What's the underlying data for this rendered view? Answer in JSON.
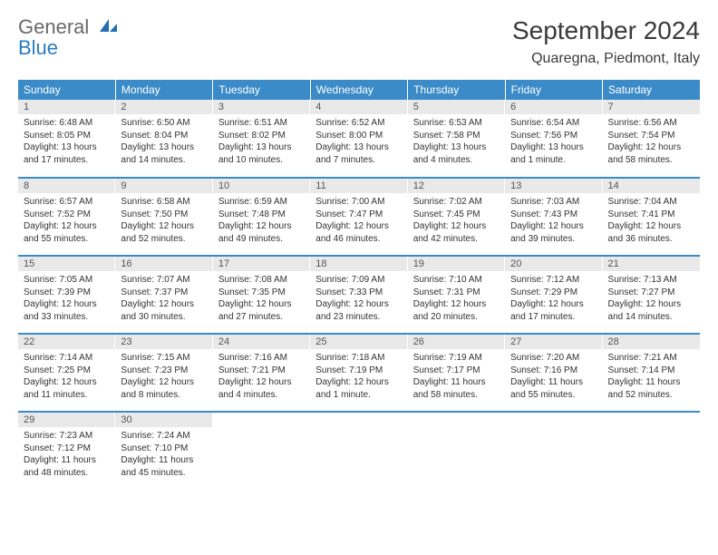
{
  "logo": {
    "line1": "General",
    "line2": "Blue"
  },
  "title": "September 2024",
  "location": "Quaregna, Piedmont, Italy",
  "colors": {
    "header_bg": "#3b8bc8",
    "header_text": "#ffffff",
    "daynum_bg": "#e9e9e9",
    "daynum_text": "#555555",
    "cell_border": "#3b8bc8",
    "title_color": "#3a3a3a",
    "body_text": "#333333",
    "logo_gray": "#6a6a6a",
    "logo_blue": "#2a7cc4"
  },
  "typography": {
    "title_fontsize": 28,
    "location_fontsize": 16,
    "dayhead_fontsize": 12,
    "daynum_fontsize": 11,
    "info_fontsize": 10
  },
  "day_names": [
    "Sunday",
    "Monday",
    "Tuesday",
    "Wednesday",
    "Thursday",
    "Friday",
    "Saturday"
  ],
  "weeks": [
    [
      {
        "n": "1",
        "sr": "Sunrise: 6:48 AM",
        "ss": "Sunset: 8:05 PM",
        "dl1": "Daylight: 13 hours",
        "dl2": "and 17 minutes."
      },
      {
        "n": "2",
        "sr": "Sunrise: 6:50 AM",
        "ss": "Sunset: 8:04 PM",
        "dl1": "Daylight: 13 hours",
        "dl2": "and 14 minutes."
      },
      {
        "n": "3",
        "sr": "Sunrise: 6:51 AM",
        "ss": "Sunset: 8:02 PM",
        "dl1": "Daylight: 13 hours",
        "dl2": "and 10 minutes."
      },
      {
        "n": "4",
        "sr": "Sunrise: 6:52 AM",
        "ss": "Sunset: 8:00 PM",
        "dl1": "Daylight: 13 hours",
        "dl2": "and 7 minutes."
      },
      {
        "n": "5",
        "sr": "Sunrise: 6:53 AM",
        "ss": "Sunset: 7:58 PM",
        "dl1": "Daylight: 13 hours",
        "dl2": "and 4 minutes."
      },
      {
        "n": "6",
        "sr": "Sunrise: 6:54 AM",
        "ss": "Sunset: 7:56 PM",
        "dl1": "Daylight: 13 hours",
        "dl2": "and 1 minute."
      },
      {
        "n": "7",
        "sr": "Sunrise: 6:56 AM",
        "ss": "Sunset: 7:54 PM",
        "dl1": "Daylight: 12 hours",
        "dl2": "and 58 minutes."
      }
    ],
    [
      {
        "n": "8",
        "sr": "Sunrise: 6:57 AM",
        "ss": "Sunset: 7:52 PM",
        "dl1": "Daylight: 12 hours",
        "dl2": "and 55 minutes."
      },
      {
        "n": "9",
        "sr": "Sunrise: 6:58 AM",
        "ss": "Sunset: 7:50 PM",
        "dl1": "Daylight: 12 hours",
        "dl2": "and 52 minutes."
      },
      {
        "n": "10",
        "sr": "Sunrise: 6:59 AM",
        "ss": "Sunset: 7:48 PM",
        "dl1": "Daylight: 12 hours",
        "dl2": "and 49 minutes."
      },
      {
        "n": "11",
        "sr": "Sunrise: 7:00 AM",
        "ss": "Sunset: 7:47 PM",
        "dl1": "Daylight: 12 hours",
        "dl2": "and 46 minutes."
      },
      {
        "n": "12",
        "sr": "Sunrise: 7:02 AM",
        "ss": "Sunset: 7:45 PM",
        "dl1": "Daylight: 12 hours",
        "dl2": "and 42 minutes."
      },
      {
        "n": "13",
        "sr": "Sunrise: 7:03 AM",
        "ss": "Sunset: 7:43 PM",
        "dl1": "Daylight: 12 hours",
        "dl2": "and 39 minutes."
      },
      {
        "n": "14",
        "sr": "Sunrise: 7:04 AM",
        "ss": "Sunset: 7:41 PM",
        "dl1": "Daylight: 12 hours",
        "dl2": "and 36 minutes."
      }
    ],
    [
      {
        "n": "15",
        "sr": "Sunrise: 7:05 AM",
        "ss": "Sunset: 7:39 PM",
        "dl1": "Daylight: 12 hours",
        "dl2": "and 33 minutes."
      },
      {
        "n": "16",
        "sr": "Sunrise: 7:07 AM",
        "ss": "Sunset: 7:37 PM",
        "dl1": "Daylight: 12 hours",
        "dl2": "and 30 minutes."
      },
      {
        "n": "17",
        "sr": "Sunrise: 7:08 AM",
        "ss": "Sunset: 7:35 PM",
        "dl1": "Daylight: 12 hours",
        "dl2": "and 27 minutes."
      },
      {
        "n": "18",
        "sr": "Sunrise: 7:09 AM",
        "ss": "Sunset: 7:33 PM",
        "dl1": "Daylight: 12 hours",
        "dl2": "and 23 minutes."
      },
      {
        "n": "19",
        "sr": "Sunrise: 7:10 AM",
        "ss": "Sunset: 7:31 PM",
        "dl1": "Daylight: 12 hours",
        "dl2": "and 20 minutes."
      },
      {
        "n": "20",
        "sr": "Sunrise: 7:12 AM",
        "ss": "Sunset: 7:29 PM",
        "dl1": "Daylight: 12 hours",
        "dl2": "and 17 minutes."
      },
      {
        "n": "21",
        "sr": "Sunrise: 7:13 AM",
        "ss": "Sunset: 7:27 PM",
        "dl1": "Daylight: 12 hours",
        "dl2": "and 14 minutes."
      }
    ],
    [
      {
        "n": "22",
        "sr": "Sunrise: 7:14 AM",
        "ss": "Sunset: 7:25 PM",
        "dl1": "Daylight: 12 hours",
        "dl2": "and 11 minutes."
      },
      {
        "n": "23",
        "sr": "Sunrise: 7:15 AM",
        "ss": "Sunset: 7:23 PM",
        "dl1": "Daylight: 12 hours",
        "dl2": "and 8 minutes."
      },
      {
        "n": "24",
        "sr": "Sunrise: 7:16 AM",
        "ss": "Sunset: 7:21 PM",
        "dl1": "Daylight: 12 hours",
        "dl2": "and 4 minutes."
      },
      {
        "n": "25",
        "sr": "Sunrise: 7:18 AM",
        "ss": "Sunset: 7:19 PM",
        "dl1": "Daylight: 12 hours",
        "dl2": "and 1 minute."
      },
      {
        "n": "26",
        "sr": "Sunrise: 7:19 AM",
        "ss": "Sunset: 7:17 PM",
        "dl1": "Daylight: 11 hours",
        "dl2": "and 58 minutes."
      },
      {
        "n": "27",
        "sr": "Sunrise: 7:20 AM",
        "ss": "Sunset: 7:16 PM",
        "dl1": "Daylight: 11 hours",
        "dl2": "and 55 minutes."
      },
      {
        "n": "28",
        "sr": "Sunrise: 7:21 AM",
        "ss": "Sunset: 7:14 PM",
        "dl1": "Daylight: 11 hours",
        "dl2": "and 52 minutes."
      }
    ],
    [
      {
        "n": "29",
        "sr": "Sunrise: 7:23 AM",
        "ss": "Sunset: 7:12 PM",
        "dl1": "Daylight: 11 hours",
        "dl2": "and 48 minutes."
      },
      {
        "n": "30",
        "sr": "Sunrise: 7:24 AM",
        "ss": "Sunset: 7:10 PM",
        "dl1": "Daylight: 11 hours",
        "dl2": "and 45 minutes."
      },
      null,
      null,
      null,
      null,
      null
    ]
  ]
}
